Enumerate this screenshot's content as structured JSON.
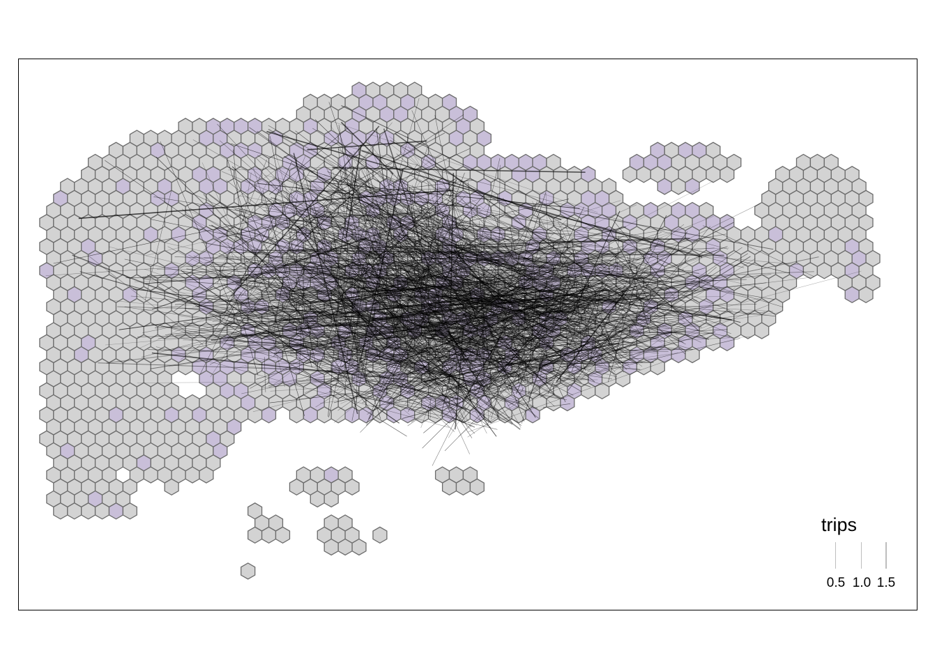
{
  "legend": {
    "title": "trips",
    "items": [
      {
        "label": "0.5",
        "width": 0.5
      },
      {
        "label": "1.0",
        "width": 1.0
      },
      {
        "label": "1.5",
        "width": 1.5
      }
    ]
  },
  "colors": {
    "hex_fill": "#d3d3d3",
    "hex_fill_highlight": "#c9bfd9",
    "hex_stroke": "#6b6b6b",
    "flow_line": "#000000",
    "frame": "#000000"
  }
}
